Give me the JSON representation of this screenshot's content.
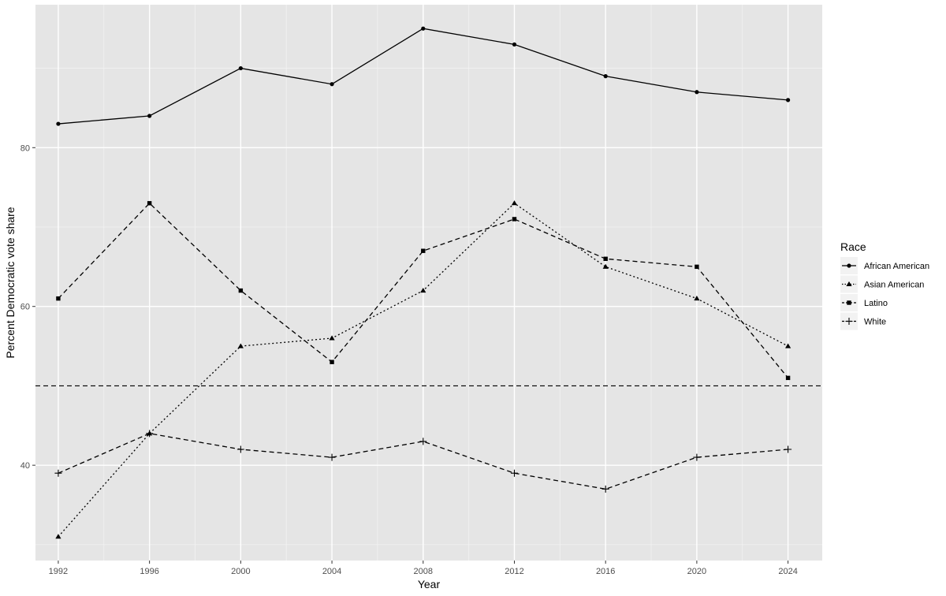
{
  "chart_data": {
    "type": "line",
    "xlabel": "Year",
    "ylabel": "Percent Democratic vote share",
    "x": [
      1992,
      1996,
      2000,
      2004,
      2008,
      2012,
      2016,
      2020,
      2024
    ],
    "xlim": [
      1991,
      2025.5
    ],
    "ylim": [
      28,
      98
    ],
    "x_ticks": [
      1992,
      1996,
      2000,
      2004,
      2008,
      2012,
      2016,
      2020,
      2024
    ],
    "y_ticks": [
      40,
      60,
      80
    ],
    "grid": true,
    "legend": {
      "title": "Race",
      "position": "right"
    },
    "reference_line": {
      "y": 50,
      "style": "dashed"
    },
    "series": [
      {
        "name": "African American",
        "linetype": "solid",
        "marker": "circle",
        "values": [
          83,
          84,
          90,
          88,
          95,
          93,
          89,
          87,
          86
        ]
      },
      {
        "name": "Asian American",
        "linetype": "dotted",
        "marker": "triangle",
        "values": [
          31,
          44,
          55,
          56,
          62,
          73,
          65,
          61,
          55
        ]
      },
      {
        "name": "Latino",
        "linetype": "dashed",
        "marker": "square",
        "values": [
          61,
          73,
          62,
          53,
          67,
          71,
          66,
          65,
          51
        ]
      },
      {
        "name": "White",
        "linetype": "dashed",
        "marker": "plus",
        "values": [
          39,
          44,
          42,
          41,
          43,
          39,
          37,
          41,
          42
        ]
      }
    ]
  }
}
